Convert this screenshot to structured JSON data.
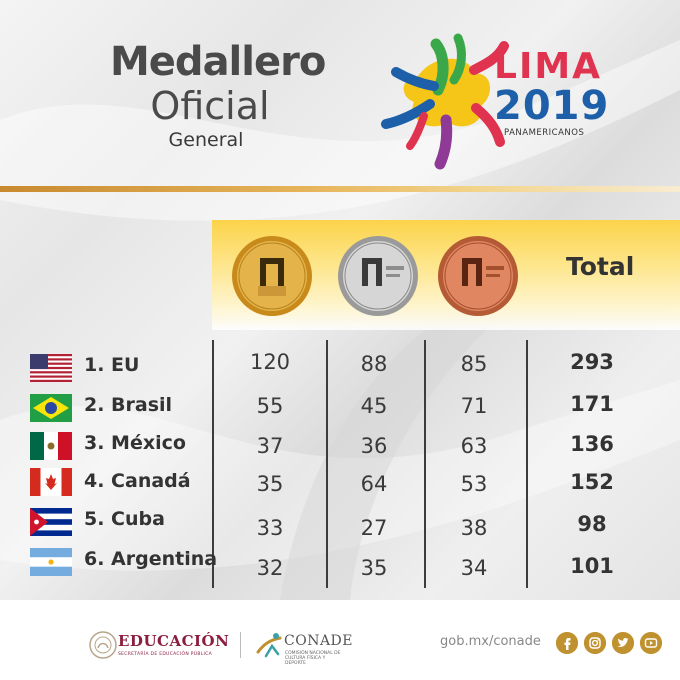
{
  "header": {
    "title_line1": "Medallero",
    "title_line2": "Oficial",
    "title_line3": "General"
  },
  "event_logo": {
    "word": "LIMA",
    "year": "2019",
    "subtitle": "PANAMERICANOS"
  },
  "table": {
    "columns": [
      "gold-medal",
      "silver-medal",
      "bronze-medal",
      "Total"
    ],
    "total_header": "Total",
    "rows": [
      {
        "label": "1. EU",
        "flag": "usa-flag",
        "gold": "120",
        "silver": "88",
        "bronze": "85",
        "total": "293"
      },
      {
        "label": "2. Brasil",
        "flag": "brazil-flag",
        "gold": "55",
        "silver": "45",
        "bronze": "71",
        "total": "171"
      },
      {
        "label": "3. México",
        "flag": "mexico-flag",
        "gold": "37",
        "silver": "36",
        "bronze": "63",
        "total": "136"
      },
      {
        "label": "4. Canadá",
        "flag": "canada-flag",
        "gold": "35",
        "silver": "64",
        "bronze": "53",
        "total": "152"
      },
      {
        "label": "5. Cuba",
        "flag": "cuba-flag",
        "gold": "33",
        "silver": "27",
        "bronze": "38",
        "total": "98"
      },
      {
        "label": "6. Argentina",
        "flag": "argentina-flag",
        "gold": "32",
        "silver": "35",
        "bronze": "34",
        "total": "101"
      }
    ]
  },
  "footer": {
    "education_label": "EDUCACIÓN",
    "education_sub": "SECRETARÍA DE EDUCACIÓN PÚBLICA",
    "conade_label": "CONADE",
    "conade_sub": "COMISIÓN NACIONAL DE CULTURA FÍSICA Y DEPORTE",
    "website": "gob.mx/conade",
    "social_icons": [
      "facebook-icon",
      "instagram-icon",
      "twitter-icon",
      "youtube-icon"
    ]
  },
  "colors": {
    "gold": "#d9a72a",
    "silver": "#c9c9c9",
    "bronze": "#d9774f",
    "accent_line": "#c88a2f",
    "header_band": "#fcd34a"
  }
}
